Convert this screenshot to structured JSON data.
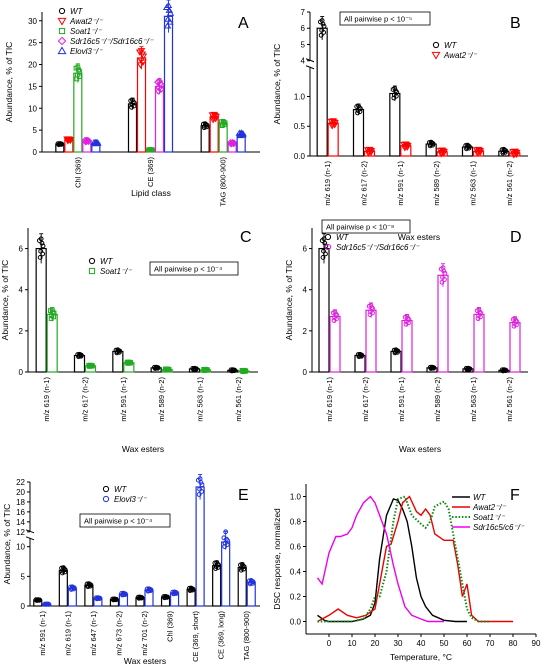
{
  "chart_data": [
    {
      "panel": "A",
      "type": "bar",
      "ylabel": "Abundance, % of TIC",
      "xlabel": "Lipid class",
      "ylim": [
        0,
        32
      ],
      "yticks": [
        0,
        5,
        10,
        15,
        20,
        25,
        30
      ],
      "categories": [
        "Chl (369)",
        "CE (369)",
        "TAG (800-900)"
      ],
      "legend": {
        "position": "top-left",
        "entries": [
          {
            "label": "WT",
            "color": "#000000",
            "marker": "circle"
          },
          {
            "label": "Awat2⁻/⁻",
            "color": "#ff0000",
            "marker": "triangle-down"
          },
          {
            "label": "Soat1⁻/⁻",
            "color": "#22aa22",
            "marker": "square"
          },
          {
            "label": "Sdr16c5⁻/⁻/Sdr16c6⁻/⁻",
            "color": "#dd22dd",
            "marker": "diamond"
          },
          {
            "label": "Elovl3⁻/⁻",
            "color": "#2233dd",
            "marker": "triangle-up"
          }
        ]
      },
      "series": [
        {
          "name": "WT",
          "color": "#000000",
          "values": [
            1.8,
            11,
            6
          ]
        },
        {
          "name": "Awat2⁻/⁻",
          "color": "#ff0000",
          "values": [
            2.8,
            21.5,
            8
          ]
        },
        {
          "name": "Soat1⁻/⁻",
          "color": "#22aa22",
          "values": [
            18,
            0.5,
            6.5
          ]
        },
        {
          "name": "Sdr16c5⁻/⁻/Sdr16c6⁻/⁻",
          "color": "#dd22dd",
          "values": [
            2.5,
            15,
            2
          ]
        },
        {
          "name": "Elovl3⁻/⁻",
          "color": "#2233dd",
          "values": [
            2,
            31,
            4
          ]
        }
      ]
    },
    {
      "panel": "B",
      "type": "bar",
      "ylabel": "Abundance, % of TIC",
      "xlabel": "Wax esters",
      "annotation": "All pairwise p < 10⁻⁵",
      "broken_axis": {
        "lower": [
          0,
          1.5
        ],
        "upper": [
          4,
          7
        ]
      },
      "yticks_lower": [
        0.0,
        0.5,
        1.0
      ],
      "yticks_upper": [
        4,
        5,
        6,
        7
      ],
      "categories": [
        "m/z 619 (n-1)",
        "m/z 617 (n-2)",
        "m/z 591 (n-1)",
        "m/z 589 (n-2)",
        "m/z 563 (n-1)",
        "m/z 561 (n-2)"
      ],
      "legend": {
        "position": "top-right",
        "entries": [
          {
            "label": "WT",
            "color": "#000000",
            "marker": "circle"
          },
          {
            "label": "Awat2⁻/⁻",
            "color": "#ff0000",
            "marker": "triangle-down"
          }
        ]
      },
      "series": [
        {
          "name": "WT",
          "color": "#000000",
          "values": [
            6.0,
            0.78,
            1.05,
            0.2,
            0.15,
            0.08
          ]
        },
        {
          "name": "Awat2⁻/⁻",
          "color": "#ff0000",
          "values": [
            0.55,
            0.08,
            0.17,
            0.07,
            0.08,
            0.05
          ]
        }
      ]
    },
    {
      "panel": "C",
      "type": "bar",
      "ylabel": "Abundance, % of TIC",
      "xlabel": "Wax esters",
      "annotation": "All pairwise p < 10⁻⁴",
      "ylim": [
        0,
        7
      ],
      "yticks": [
        0,
        2,
        4,
        6
      ],
      "categories": [
        "m/z 619 (n-1)",
        "m/z 617 (n-2)",
        "m/z 591 (n-1)",
        "m/z 589 (n-2)",
        "m/z 563 (n-1)",
        "m/z 561 (n-2)"
      ],
      "legend": {
        "position": "top-center",
        "entries": [
          {
            "label": "WT",
            "color": "#000000",
            "marker": "circle"
          },
          {
            "label": "Soat1⁻/⁻",
            "color": "#22aa22",
            "marker": "square"
          }
        ]
      },
      "series": [
        {
          "name": "WT",
          "color": "#000000",
          "values": [
            6.0,
            0.8,
            1.0,
            0.2,
            0.15,
            0.08
          ]
        },
        {
          "name": "Soat1⁻/⁻",
          "color": "#22aa22",
          "values": [
            2.8,
            0.3,
            0.45,
            0.12,
            0.1,
            0.05
          ]
        }
      ]
    },
    {
      "panel": "D",
      "type": "bar",
      "ylabel": "Abundance, % of TIC",
      "xlabel": "Wax esters",
      "annotation": "All pairwise p < 10⁻⁸",
      "ylim": [
        0,
        7
      ],
      "yticks": [
        0,
        2,
        4,
        6
      ],
      "categories": [
        "m/z 619 (n-1)",
        "m/z 617 (n-2)",
        "m/z 591 (n-1)",
        "m/z 589 (n-2)",
        "m/z 563 (n-1)",
        "m/z 561 (n-2)"
      ],
      "legend": {
        "position": "top-left",
        "entries": [
          {
            "label": "WT",
            "color": "#000000",
            "marker": "circle"
          },
          {
            "label": "Sdr16c5⁻/⁻/Sdr16c6⁻/⁻",
            "color": "#dd22dd",
            "marker": "circle"
          }
        ]
      },
      "series": [
        {
          "name": "WT",
          "color": "#000000",
          "values": [
            6.0,
            0.8,
            1.0,
            0.2,
            0.15,
            0.08
          ]
        },
        {
          "name": "Sdr16c5⁻/⁻/Sdr16c6⁻/⁻",
          "color": "#dd22dd",
          "values": [
            2.7,
            3.0,
            2.5,
            4.7,
            2.8,
            2.4
          ]
        }
      ]
    },
    {
      "panel": "E",
      "type": "bar",
      "ylabel": "Abundance, % of TIC",
      "xlabel": "Wax esters",
      "annotation": "All pairwise p < 10⁻⁴",
      "broken_axis": {
        "lower": [
          0,
          11.5
        ],
        "upper": [
          12,
          22
        ]
      },
      "yticks_lower": [
        0,
        5,
        10
      ],
      "yticks_upper": [
        12,
        14,
        16,
        18,
        20,
        22
      ],
      "categories": [
        "m/z 591 (n-1)",
        "m/z 619 (n-1)",
        "m/z 647 (n-1)",
        "m/z 673 (n-2)",
        "m/z 701 (n-2)",
        "Chl (369)",
        "CE (369, short)",
        "CE (369, long)",
        "TAG (800-900)"
      ],
      "legend": {
        "position": "top-center",
        "entries": [
          {
            "label": "WT",
            "color": "#000000",
            "marker": "circle"
          },
          {
            "label": "Elovl3⁻/⁻",
            "color": "#2233dd",
            "marker": "circle"
          }
        ]
      },
      "series": [
        {
          "name": "WT",
          "color": "#000000",
          "values": [
            1.0,
            6.0,
            3.5,
            1.1,
            1.4,
            1.5,
            2.8,
            6.8,
            6.5
          ]
        },
        {
          "name": "Elovl3⁻/⁻",
          "color": "#2233dd",
          "values": [
            0.3,
            3.0,
            1.3,
            2.0,
            2.7,
            2.2,
            21.0,
            10.8,
            4.0
          ]
        }
      ]
    },
    {
      "panel": "F",
      "type": "line",
      "ylabel": "DSC response, normalized",
      "xlabel": "Temperature, °C",
      "xlim": [
        -10,
        90
      ],
      "ylim": [
        -0.1,
        1.1
      ],
      "xticks": [
        0,
        10,
        20,
        30,
        40,
        50,
        60,
        70,
        80,
        90
      ],
      "yticks": [
        0.0,
        0.2,
        0.4,
        0.6,
        0.8,
        1.0
      ],
      "legend": {
        "position": "top-right",
        "entries": [
          {
            "label": "WT",
            "color": "#000000",
            "dash": "solid"
          },
          {
            "label": "Awat2⁻/⁻",
            "color": "#ee0000",
            "dash": "solid"
          },
          {
            "label": "Soat1⁻/⁻",
            "color": "#118811",
            "dash": "dotted"
          },
          {
            "label": "Sdr16c5/c6⁻/⁻",
            "color": "#ee00ee",
            "dash": "solid"
          }
        ]
      },
      "series": [
        {
          "name": "WT",
          "color": "#000000",
          "dash": "solid",
          "x": [
            -5,
            -2,
            0,
            5,
            10,
            15,
            18,
            20,
            22,
            25,
            28,
            30,
            32,
            34,
            36,
            38,
            40,
            42,
            45,
            50,
            55,
            60
          ],
          "y": [
            0.05,
            0.01,
            0.0,
            0.0,
            0.0,
            0.02,
            0.05,
            0.15,
            0.5,
            0.85,
            0.98,
            0.97,
            0.9,
            0.8,
            0.6,
            0.35,
            0.2,
            0.12,
            0.05,
            0.01,
            0.0,
            0.0
          ]
        },
        {
          "name": "Awat2⁻/⁻",
          "color": "#ee0000",
          "dash": "solid",
          "x": [
            -5,
            0,
            4,
            8,
            12,
            16,
            20,
            22,
            25,
            27,
            30,
            32,
            35,
            38,
            40,
            42,
            44,
            46,
            50,
            54,
            56,
            58,
            60,
            62,
            65,
            70,
            80
          ],
          "y": [
            0.0,
            0.05,
            0.1,
            0.05,
            0.03,
            0.05,
            0.1,
            0.3,
            0.6,
            0.62,
            0.8,
            0.95,
            1.0,
            0.88,
            0.85,
            0.9,
            0.85,
            0.7,
            0.65,
            0.65,
            0.45,
            0.2,
            0.3,
            0.05,
            0.0,
            0.0,
            0.0
          ]
        },
        {
          "name": "Soat1⁻/⁻",
          "color": "#118811",
          "dash": "dotted",
          "x": [
            -5,
            0,
            5,
            10,
            15,
            18,
            20,
            22,
            25,
            28,
            30,
            33,
            36,
            40,
            42,
            44,
            46,
            50,
            52,
            55,
            58,
            60,
            62,
            65,
            70
          ],
          "y": [
            0.0,
            0.0,
            0.0,
            0.0,
            0.02,
            0.1,
            0.2,
            0.2,
            0.4,
            0.8,
            0.98,
            1.0,
            0.85,
            0.78,
            0.75,
            0.8,
            0.92,
            0.96,
            0.9,
            0.6,
            0.3,
            0.1,
            0.03,
            0.0,
            0.0
          ]
        },
        {
          "name": "Sdr16c5/c6⁻/⁻",
          "color": "#ee00ee",
          "dash": "solid",
          "x": [
            -5,
            -3,
            0,
            3,
            5,
            8,
            10,
            12,
            15,
            18,
            20,
            22,
            25,
            28,
            30,
            33,
            36,
            40,
            43,
            46,
            50
          ],
          "y": [
            0.35,
            0.3,
            0.55,
            0.68,
            0.68,
            0.7,
            0.75,
            0.85,
            0.95,
            1.0,
            0.95,
            0.85,
            0.7,
            0.45,
            0.3,
            0.12,
            0.05,
            0.02,
            0.0,
            0.0,
            0.0
          ]
        }
      ]
    }
  ]
}
